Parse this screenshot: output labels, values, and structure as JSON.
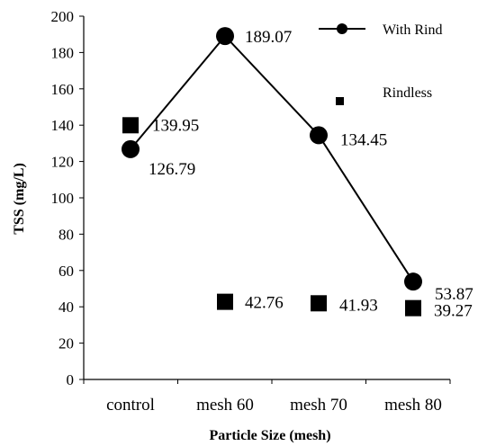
{
  "chart_data": {
    "type": "line",
    "categories": [
      "control",
      "mesh 60",
      "mesh 70",
      "mesh 80"
    ],
    "xlabel": "Particle Size (mesh)",
    "ylabel": "TSS (mg/L)",
    "ylim": [
      0,
      200
    ],
    "yticks": [
      0,
      20,
      40,
      60,
      80,
      100,
      120,
      140,
      160,
      180,
      200
    ],
    "grid": false,
    "legend_position": "top-right",
    "series": [
      {
        "name": "With Rind",
        "style": "line-circle",
        "color": "#000000",
        "values": [
          126.79,
          189.07,
          134.45,
          53.87
        ],
        "labels": [
          "126.79",
          "189.07",
          "134.45",
          "53.87"
        ]
      },
      {
        "name": "Rindless",
        "style": "square",
        "color": "#000000",
        "values": [
          139.95,
          42.76,
          41.93,
          39.27
        ],
        "labels": [
          "139.95",
          "42.76",
          "41.93",
          "39.27"
        ]
      }
    ]
  }
}
